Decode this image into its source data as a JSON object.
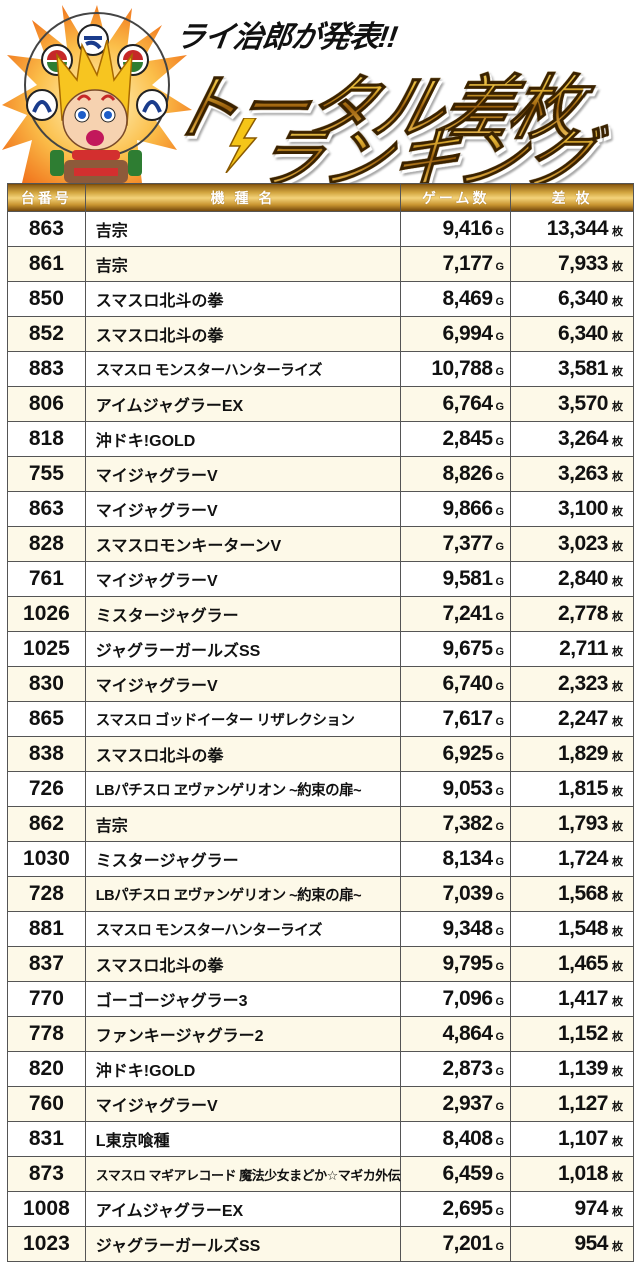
{
  "banner": {
    "subtitle": "ライ治郎が発表!!",
    "title_line1": "トータル差枚",
    "title_line2": "ランキング",
    "mascot": "raijiro-mascot",
    "colors": {
      "gold": "#e8b938",
      "burst": "#f28a1e",
      "text": "#111111"
    }
  },
  "table": {
    "headers": [
      "台番号",
      "機 種 名",
      "ゲーム数",
      "差 枚"
    ],
    "game_unit": "G",
    "diff_unit": "枚",
    "colors": {
      "header_gold": "#d3a640",
      "row_alt": "#fdf9e8",
      "row": "#ffffff",
      "border": "#555555"
    },
    "rows": [
      {
        "no": "863",
        "name": "吉宗",
        "games": "9,416",
        "diff": "13,344"
      },
      {
        "no": "861",
        "name": "吉宗",
        "games": "7,177",
        "diff": "7,933"
      },
      {
        "no": "850",
        "name": "スマスロ北斗の拳",
        "games": "8,469",
        "diff": "6,340"
      },
      {
        "no": "852",
        "name": "スマスロ北斗の拳",
        "games": "6,994",
        "diff": "6,340"
      },
      {
        "no": "883",
        "name": "スマスロ モンスターハンターライズ",
        "games": "10,788",
        "diff": "3,581"
      },
      {
        "no": "806",
        "name": "アイムジャグラーEX",
        "games": "6,764",
        "diff": "3,570"
      },
      {
        "no": "818",
        "name": "沖ドキ!GOLD",
        "games": "2,845",
        "diff": "3,264"
      },
      {
        "no": "755",
        "name": "マイジャグラーV",
        "games": "8,826",
        "diff": "3,263"
      },
      {
        "no": "863",
        "name": "マイジャグラーV",
        "games": "9,866",
        "diff": "3,100"
      },
      {
        "no": "828",
        "name": "スマスロモンキーターンV",
        "games": "7,377",
        "diff": "3,023"
      },
      {
        "no": "761",
        "name": "マイジャグラーV",
        "games": "9,581",
        "diff": "2,840"
      },
      {
        "no": "1026",
        "name": "ミスタージャグラー",
        "games": "7,241",
        "diff": "2,778"
      },
      {
        "no": "1025",
        "name": "ジャグラーガールズSS",
        "games": "9,675",
        "diff": "2,711"
      },
      {
        "no": "830",
        "name": "マイジャグラーV",
        "games": "6,740",
        "diff": "2,323"
      },
      {
        "no": "865",
        "name": "スマスロ ゴッドイーター リザレクション",
        "games": "7,617",
        "diff": "2,247"
      },
      {
        "no": "838",
        "name": "スマスロ北斗の拳",
        "games": "6,925",
        "diff": "1,829"
      },
      {
        "no": "726",
        "name": "LBパチスロ ヱヴァンゲリオン ~約束の扉~",
        "games": "9,053",
        "diff": "1,815"
      },
      {
        "no": "862",
        "name": "吉宗",
        "games": "7,382",
        "diff": "1,793"
      },
      {
        "no": "1030",
        "name": "ミスタージャグラー",
        "games": "8,134",
        "diff": "1,724"
      },
      {
        "no": "728",
        "name": "LBパチスロ ヱヴァンゲリオン ~約束の扉~",
        "games": "7,039",
        "diff": "1,568"
      },
      {
        "no": "881",
        "name": "スマスロ モンスターハンターライズ",
        "games": "9,348",
        "diff": "1,548"
      },
      {
        "no": "837",
        "name": "スマスロ北斗の拳",
        "games": "9,795",
        "diff": "1,465"
      },
      {
        "no": "770",
        "name": "ゴーゴージャグラー3",
        "games": "7,096",
        "diff": "1,417"
      },
      {
        "no": "778",
        "name": "ファンキージャグラー2",
        "games": "4,864",
        "diff": "1,152"
      },
      {
        "no": "820",
        "name": "沖ドキ!GOLD",
        "games": "2,873",
        "diff": "1,139"
      },
      {
        "no": "760",
        "name": "マイジャグラーV",
        "games": "2,937",
        "diff": "1,127"
      },
      {
        "no": "831",
        "name": "L東京喰種",
        "games": "8,408",
        "diff": "1,107"
      },
      {
        "no": "873",
        "name": "スマスロ マギアレコード 魔法少女まどか☆マギカ外伝",
        "games": "6,459",
        "diff": "1,018"
      },
      {
        "no": "1008",
        "name": "アイムジャグラーEX",
        "games": "2,695",
        "diff": "974"
      },
      {
        "no": "1023",
        "name": "ジャグラーガールズSS",
        "games": "7,201",
        "diff": "954"
      }
    ]
  }
}
